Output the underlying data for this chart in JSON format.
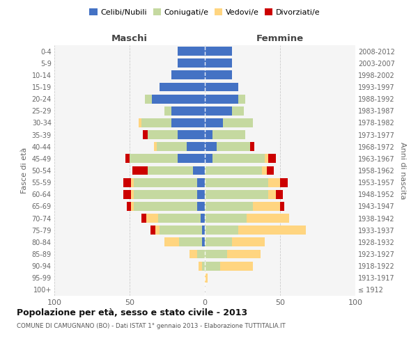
{
  "age_groups": [
    "100+",
    "95-99",
    "90-94",
    "85-89",
    "80-84",
    "75-79",
    "70-74",
    "65-69",
    "60-64",
    "55-59",
    "50-54",
    "45-49",
    "40-44",
    "35-39",
    "30-34",
    "25-29",
    "20-24",
    "15-19",
    "10-14",
    "5-9",
    "0-4"
  ],
  "birth_years": [
    "≤ 1912",
    "1913-1917",
    "1918-1922",
    "1923-1927",
    "1928-1932",
    "1933-1937",
    "1938-1942",
    "1943-1947",
    "1948-1952",
    "1953-1957",
    "1958-1962",
    "1963-1967",
    "1968-1972",
    "1973-1977",
    "1978-1982",
    "1983-1987",
    "1988-1992",
    "1993-1997",
    "1998-2002",
    "2003-2007",
    "2008-2012"
  ],
  "maschi": {
    "celibi": [
      0,
      0,
      0,
      0,
      2,
      2,
      3,
      5,
      5,
      5,
      8,
      18,
      12,
      18,
      22,
      22,
      35,
      30,
      22,
      18,
      18
    ],
    "coniugati": [
      0,
      0,
      2,
      5,
      15,
      28,
      28,
      42,
      42,
      42,
      30,
      32,
      20,
      20,
      20,
      5,
      5,
      0,
      0,
      0,
      0
    ],
    "vedovi": [
      0,
      0,
      2,
      5,
      10,
      3,
      8,
      2,
      2,
      2,
      0,
      0,
      2,
      0,
      2,
      0,
      0,
      0,
      0,
      0,
      0
    ],
    "divorziati": [
      0,
      0,
      0,
      0,
      0,
      3,
      3,
      3,
      5,
      5,
      10,
      3,
      0,
      3,
      0,
      0,
      0,
      0,
      0,
      0,
      0
    ]
  },
  "femmine": {
    "nubili": [
      0,
      0,
      0,
      0,
      0,
      0,
      0,
      0,
      0,
      0,
      0,
      5,
      8,
      5,
      12,
      18,
      22,
      22,
      18,
      18,
      18
    ],
    "coniugate": [
      0,
      0,
      10,
      15,
      18,
      22,
      28,
      32,
      42,
      42,
      38,
      35,
      22,
      22,
      20,
      8,
      5,
      0,
      0,
      0,
      0
    ],
    "vedove": [
      0,
      2,
      22,
      22,
      22,
      45,
      28,
      18,
      5,
      8,
      3,
      2,
      0,
      0,
      0,
      0,
      0,
      0,
      0,
      0,
      0
    ],
    "divorziate": [
      0,
      0,
      0,
      0,
      0,
      0,
      0,
      3,
      5,
      5,
      5,
      5,
      3,
      0,
      0,
      0,
      0,
      0,
      0,
      0,
      0
    ]
  },
  "colors": {
    "celibi_nubili": "#4472C4",
    "coniugati": "#C5D9A0",
    "vedovi": "#FFD580",
    "divorziati": "#CC0000"
  },
  "xlim": 100,
  "title": "Popolazione per età, sesso e stato civile - 2013",
  "subtitle": "COMUNE DI CAMUGNANO (BO) - Dati ISTAT 1° gennaio 2013 - Elaborazione TUTTITALIA.IT",
  "ylabel_left": "Fasce di età",
  "ylabel_right": "Anni di nascita",
  "xlabel_left": "Maschi",
  "xlabel_right": "Femmine",
  "bg_color": "#f5f5f5",
  "grid_color": "#cccccc"
}
